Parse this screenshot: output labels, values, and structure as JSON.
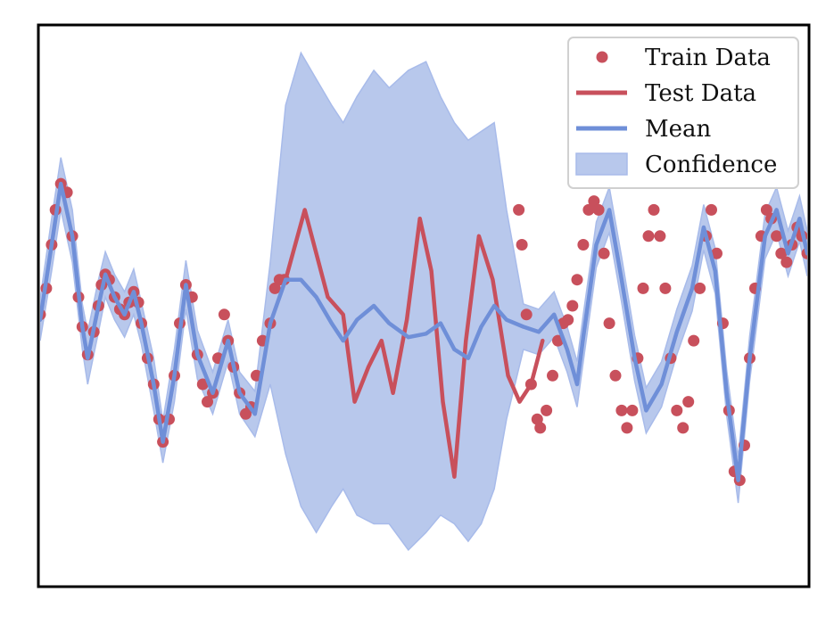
{
  "chart_data": {
    "type": "line",
    "title": "",
    "xlabel": "",
    "ylabel": "",
    "xlim": [
      0,
      1
    ],
    "ylim": [
      -1.6,
      1.6
    ],
    "ticks_visible": false,
    "grid": false,
    "legend_placement": "top-right",
    "colors": {
      "train": "#c8505c",
      "test": "#c8505c",
      "mean": "#6f8fd8",
      "confidence": "#b8c8ec",
      "confidence_edge": "#a8bbea",
      "frame": "#000000"
    },
    "legend": [
      {
        "label": "Train Data",
        "kind": "marker",
        "series": "train"
      },
      {
        "label": "Test Data",
        "kind": "line",
        "series": "test"
      },
      {
        "label": "Mean",
        "kind": "line",
        "series": "mean"
      },
      {
        "label": "Confidence",
        "kind": "patch",
        "series": "confidence"
      }
    ],
    "mean_line": [
      [
        0.0,
        -0.08
      ],
      [
        0.015,
        0.35
      ],
      [
        0.027,
        0.7
      ],
      [
        0.042,
        0.4
      ],
      [
        0.055,
        -0.12
      ],
      [
        0.062,
        -0.3
      ],
      [
        0.076,
        0.0
      ],
      [
        0.085,
        0.18
      ],
      [
        0.097,
        0.05
      ],
      [
        0.11,
        -0.05
      ],
      [
        0.122,
        0.08
      ],
      [
        0.132,
        -0.1
      ],
      [
        0.148,
        -0.45
      ],
      [
        0.16,
        -0.78
      ],
      [
        0.175,
        -0.4
      ],
      [
        0.19,
        0.12
      ],
      [
        0.205,
        -0.28
      ],
      [
        0.225,
        -0.5
      ],
      [
        0.245,
        -0.2
      ],
      [
        0.26,
        -0.5
      ],
      [
        0.28,
        -0.62
      ],
      [
        0.3,
        -0.1
      ],
      [
        0.32,
        0.15
      ],
      [
        0.34,
        0.15
      ],
      [
        0.36,
        0.05
      ],
      [
        0.38,
        -0.1
      ],
      [
        0.395,
        -0.2
      ],
      [
        0.413,
        -0.08
      ],
      [
        0.435,
        0.0
      ],
      [
        0.455,
        -0.1
      ],
      [
        0.48,
        -0.18
      ],
      [
        0.503,
        -0.16
      ],
      [
        0.522,
        -0.1
      ],
      [
        0.54,
        -0.25
      ],
      [
        0.558,
        -0.3
      ],
      [
        0.575,
        -0.12
      ],
      [
        0.592,
        0.0
      ],
      [
        0.608,
        -0.08
      ],
      [
        0.63,
        -0.12
      ],
      [
        0.65,
        -0.15
      ],
      [
        0.67,
        -0.05
      ],
      [
        0.687,
        -0.25
      ],
      [
        0.7,
        -0.45
      ],
      [
        0.708,
        -0.18
      ],
      [
        0.725,
        0.35
      ],
      [
        0.742,
        0.55
      ],
      [
        0.758,
        0.15
      ],
      [
        0.775,
        -0.3
      ],
      [
        0.79,
        -0.6
      ],
      [
        0.81,
        -0.45
      ],
      [
        0.83,
        -0.15
      ],
      [
        0.85,
        0.1
      ],
      [
        0.865,
        0.45
      ],
      [
        0.88,
        0.2
      ],
      [
        0.895,
        -0.5
      ],
      [
        0.91,
        -1.0
      ],
      [
        0.925,
        -0.3
      ],
      [
        0.945,
        0.4
      ],
      [
        0.96,
        0.55
      ],
      [
        0.975,
        0.3
      ],
      [
        0.99,
        0.5
      ],
      [
        1.0,
        0.3
      ]
    ],
    "confidence_lower": [
      [
        0.0,
        -0.2
      ],
      [
        0.015,
        0.2
      ],
      [
        0.027,
        0.55
      ],
      [
        0.042,
        0.25
      ],
      [
        0.055,
        -0.25
      ],
      [
        0.062,
        -0.45
      ],
      [
        0.076,
        -0.15
      ],
      [
        0.085,
        0.05
      ],
      [
        0.097,
        -0.08
      ],
      [
        0.11,
        -0.18
      ],
      [
        0.122,
        -0.05
      ],
      [
        0.132,
        -0.22
      ],
      [
        0.148,
        -0.6
      ],
      [
        0.16,
        -0.9
      ],
      [
        0.175,
        -0.55
      ],
      [
        0.19,
        -0.02
      ],
      [
        0.205,
        -0.42
      ],
      [
        0.225,
        -0.62
      ],
      [
        0.245,
        -0.32
      ],
      [
        0.26,
        -0.62
      ],
      [
        0.28,
        -0.75
      ],
      [
        0.3,
        -0.45
      ],
      [
        0.32,
        -0.85
      ],
      [
        0.34,
        -1.15
      ],
      [
        0.36,
        -1.3
      ],
      [
        0.38,
        -1.15
      ],
      [
        0.395,
        -1.05
      ],
      [
        0.413,
        -1.2
      ],
      [
        0.435,
        -1.25
      ],
      [
        0.455,
        -1.25
      ],
      [
        0.48,
        -1.4
      ],
      [
        0.503,
        -1.3
      ],
      [
        0.522,
        -1.2
      ],
      [
        0.54,
        -1.25
      ],
      [
        0.558,
        -1.35
      ],
      [
        0.575,
        -1.25
      ],
      [
        0.592,
        -1.05
      ],
      [
        0.608,
        -0.65
      ],
      [
        0.63,
        -0.25
      ],
      [
        0.65,
        -0.28
      ],
      [
        0.67,
        -0.18
      ],
      [
        0.687,
        -0.38
      ],
      [
        0.7,
        -0.58
      ],
      [
        0.708,
        -0.32
      ],
      [
        0.725,
        0.22
      ],
      [
        0.742,
        0.42
      ],
      [
        0.758,
        0.02
      ],
      [
        0.775,
        -0.43
      ],
      [
        0.79,
        -0.73
      ],
      [
        0.81,
        -0.58
      ],
      [
        0.83,
        -0.28
      ],
      [
        0.85,
        -0.03
      ],
      [
        0.865,
        0.32
      ],
      [
        0.88,
        0.07
      ],
      [
        0.895,
        -0.63
      ],
      [
        0.91,
        -1.13
      ],
      [
        0.925,
        -0.43
      ],
      [
        0.945,
        0.27
      ],
      [
        0.96,
        0.42
      ],
      [
        0.975,
        0.17
      ],
      [
        0.99,
        0.37
      ],
      [
        1.0,
        0.17
      ]
    ],
    "confidence_upper": [
      [
        0.0,
        0.04
      ],
      [
        0.015,
        0.5
      ],
      [
        0.027,
        0.85
      ],
      [
        0.042,
        0.55
      ],
      [
        0.055,
        0.01
      ],
      [
        0.062,
        -0.15
      ],
      [
        0.076,
        0.15
      ],
      [
        0.085,
        0.31
      ],
      [
        0.097,
        0.18
      ],
      [
        0.11,
        0.08
      ],
      [
        0.122,
        0.21
      ],
      [
        0.132,
        0.02
      ],
      [
        0.148,
        -0.3
      ],
      [
        0.16,
        -0.66
      ],
      [
        0.175,
        -0.25
      ],
      [
        0.19,
        0.26
      ],
      [
        0.205,
        -0.14
      ],
      [
        0.225,
        -0.38
      ],
      [
        0.245,
        -0.08
      ],
      [
        0.26,
        -0.38
      ],
      [
        0.28,
        -0.49
      ],
      [
        0.3,
        0.25
      ],
      [
        0.32,
        1.15
      ],
      [
        0.34,
        1.45
      ],
      [
        0.36,
        1.3
      ],
      [
        0.38,
        1.15
      ],
      [
        0.395,
        1.05
      ],
      [
        0.413,
        1.2
      ],
      [
        0.435,
        1.35
      ],
      [
        0.455,
        1.25
      ],
      [
        0.48,
        1.35
      ],
      [
        0.503,
        1.4
      ],
      [
        0.522,
        1.2
      ],
      [
        0.54,
        1.05
      ],
      [
        0.558,
        0.95
      ],
      [
        0.575,
        1.0
      ],
      [
        0.592,
        1.05
      ],
      [
        0.608,
        0.55
      ],
      [
        0.63,
        0.01
      ],
      [
        0.65,
        -0.02
      ],
      [
        0.67,
        0.08
      ],
      [
        0.687,
        -0.12
      ],
      [
        0.7,
        -0.32
      ],
      [
        0.708,
        -0.05
      ],
      [
        0.725,
        0.48
      ],
      [
        0.742,
        0.68
      ],
      [
        0.758,
        0.28
      ],
      [
        0.775,
        -0.17
      ],
      [
        0.79,
        -0.47
      ],
      [
        0.81,
        -0.32
      ],
      [
        0.83,
        -0.02
      ],
      [
        0.85,
        0.23
      ],
      [
        0.865,
        0.58
      ],
      [
        0.88,
        0.33
      ],
      [
        0.895,
        -0.37
      ],
      [
        0.91,
        -0.87
      ],
      [
        0.925,
        -0.17
      ],
      [
        0.945,
        0.53
      ],
      [
        0.96,
        0.68
      ],
      [
        0.975,
        0.43
      ],
      [
        0.99,
        0.63
      ],
      [
        1.0,
        0.43
      ]
    ],
    "test_line": [
      [
        0.32,
        0.15
      ],
      [
        0.345,
        0.55
      ],
      [
        0.375,
        0.05
      ],
      [
        0.395,
        -0.05
      ],
      [
        0.41,
        -0.55
      ],
      [
        0.428,
        -0.35
      ],
      [
        0.445,
        -0.2
      ],
      [
        0.46,
        -0.5
      ],
      [
        0.478,
        -0.08
      ],
      [
        0.495,
        0.5
      ],
      [
        0.51,
        0.2
      ],
      [
        0.525,
        -0.55
      ],
      [
        0.54,
        -0.98
      ],
      [
        0.555,
        -0.2
      ],
      [
        0.572,
        0.4
      ],
      [
        0.59,
        0.15
      ],
      [
        0.61,
        -0.4
      ],
      [
        0.625,
        -0.55
      ],
      [
        0.64,
        -0.45
      ],
      [
        0.655,
        -0.2
      ]
    ],
    "train_points": [
      [
        0.0,
        -0.05
      ],
      [
        0.008,
        0.1
      ],
      [
        0.015,
        0.35
      ],
      [
        0.02,
        0.55
      ],
      [
        0.027,
        0.7
      ],
      [
        0.035,
        0.65
      ],
      [
        0.042,
        0.4
      ],
      [
        0.05,
        0.05
      ],
      [
        0.055,
        -0.12
      ],
      [
        0.062,
        -0.28
      ],
      [
        0.07,
        -0.15
      ],
      [
        0.076,
        0.0
      ],
      [
        0.08,
        0.12
      ],
      [
        0.085,
        0.18
      ],
      [
        0.09,
        0.15
      ],
      [
        0.097,
        0.05
      ],
      [
        0.104,
        -0.02
      ],
      [
        0.11,
        -0.05
      ],
      [
        0.116,
        0.02
      ],
      [
        0.122,
        0.08
      ],
      [
        0.128,
        0.02
      ],
      [
        0.132,
        -0.1
      ],
      [
        0.14,
        -0.3
      ],
      [
        0.148,
        -0.45
      ],
      [
        0.155,
        -0.65
      ],
      [
        0.16,
        -0.78
      ],
      [
        0.168,
        -0.65
      ],
      [
        0.175,
        -0.4
      ],
      [
        0.182,
        -0.1
      ],
      [
        0.19,
        0.12
      ],
      [
        0.198,
        0.05
      ],
      [
        0.205,
        -0.28
      ],
      [
        0.212,
        -0.45
      ],
      [
        0.218,
        -0.55
      ],
      [
        0.225,
        -0.5
      ],
      [
        0.232,
        -0.3
      ],
      [
        0.24,
        -0.05
      ],
      [
        0.245,
        -0.2
      ],
      [
        0.252,
        -0.35
      ],
      [
        0.26,
        -0.5
      ],
      [
        0.268,
        -0.62
      ],
      [
        0.275,
        -0.58
      ],
      [
        0.282,
        -0.4
      ],
      [
        0.29,
        -0.2
      ],
      [
        0.3,
        -0.1
      ],
      [
        0.306,
        0.1
      ],
      [
        0.312,
        0.15
      ],
      [
        0.318,
        0.15
      ],
      [
        0.624,
        0.55
      ],
      [
        0.628,
        0.35
      ],
      [
        0.634,
        -0.05
      ],
      [
        0.64,
        -0.45
      ],
      [
        0.648,
        -0.65
      ],
      [
        0.652,
        -0.7
      ],
      [
        0.66,
        -0.6
      ],
      [
        0.668,
        -0.4
      ],
      [
        0.675,
        -0.2
      ],
      [
        0.682,
        -0.1
      ],
      [
        0.688,
        -0.08
      ],
      [
        0.694,
        0.0
      ],
      [
        0.7,
        0.15
      ],
      [
        0.708,
        0.35
      ],
      [
        0.715,
        0.55
      ],
      [
        0.722,
        0.6
      ],
      [
        0.728,
        0.55
      ],
      [
        0.735,
        0.3
      ],
      [
        0.742,
        -0.1
      ],
      [
        0.75,
        -0.4
      ],
      [
        0.758,
        -0.6
      ],
      [
        0.765,
        -0.7
      ],
      [
        0.772,
        -0.6
      ],
      [
        0.779,
        -0.3
      ],
      [
        0.786,
        0.1
      ],
      [
        0.793,
        0.4
      ],
      [
        0.8,
        0.55
      ],
      [
        0.808,
        0.4
      ],
      [
        0.815,
        0.1
      ],
      [
        0.822,
        -0.3
      ],
      [
        0.83,
        -0.6
      ],
      [
        0.838,
        -0.7
      ],
      [
        0.845,
        -0.55
      ],
      [
        0.852,
        -0.2
      ],
      [
        0.86,
        0.1
      ],
      [
        0.868,
        0.4
      ],
      [
        0.875,
        0.55
      ],
      [
        0.882,
        0.3
      ],
      [
        0.89,
        -0.1
      ],
      [
        0.898,
        -0.6
      ],
      [
        0.905,
        -0.95
      ],
      [
        0.912,
        -1.0
      ],
      [
        0.918,
        -0.8
      ],
      [
        0.925,
        -0.3
      ],
      [
        0.932,
        0.1
      ],
      [
        0.94,
        0.4
      ],
      [
        0.947,
        0.55
      ],
      [
        0.953,
        0.5
      ],
      [
        0.96,
        0.4
      ],
      [
        0.966,
        0.3
      ],
      [
        0.973,
        0.25
      ],
      [
        0.98,
        0.35
      ],
      [
        0.987,
        0.45
      ],
      [
        0.993,
        0.4
      ],
      [
        1.0,
        0.3
      ]
    ]
  }
}
